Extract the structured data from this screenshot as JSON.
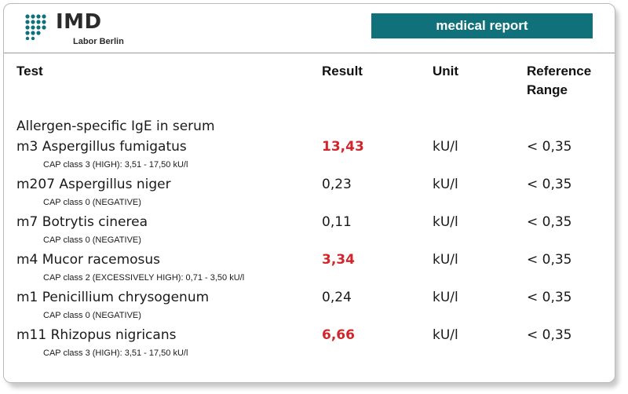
{
  "header": {
    "logo_name": "IMD",
    "logo_subtitle": "Labor Berlin",
    "banner_title": "medical report",
    "banner_color": "#10717a"
  },
  "columns": {
    "test": "Test",
    "result": "Result",
    "unit": "Unit",
    "reference": "Reference Range"
  },
  "section": {
    "title": "Allergen-specific IgE in serum"
  },
  "rows": [
    {
      "name": "m3 Aspergillus fumigatus",
      "result": "13,43",
      "high": true,
      "unit": "kU/l",
      "reference": "< 0,35",
      "cap": "CAP class 3 (HIGH): 3,51 - 17,50 kU/l"
    },
    {
      "name": "m207 Aspergillus niger",
      "result": "0,23",
      "high": false,
      "unit": "kU/l",
      "reference": "< 0,35",
      "cap": "CAP class 0 (NEGATIVE)"
    },
    {
      "name": "m7 Botrytis cinerea",
      "result": "0,11",
      "high": false,
      "unit": "kU/l",
      "reference": "< 0,35",
      "cap": "CAP class 0 (NEGATIVE)"
    },
    {
      "name": "m4 Mucor racemosus",
      "result": "3,34",
      "high": true,
      "unit": "kU/l",
      "reference": "< 0,35",
      "cap": "CAP class 2  (EXCESSIVELY HIGH): 0,71 - 3,50 kU/l"
    },
    {
      "name": "m1 Penicillium chrysogenum",
      "result": "0,24",
      "high": false,
      "unit": "kU/l",
      "reference": "< 0,35",
      "cap": "CAP class 0 (NEGATIVE)"
    },
    {
      "name": "m11 Rhizopus nigricans",
      "result": "6,66",
      "high": true,
      "unit": "kU/l",
      "reference": "< 0,35",
      "cap": "CAP class 3 (HIGH): 3,51 - 17,50 kU/l"
    }
  ],
  "colors": {
    "high_value": "#d0262c",
    "text": "#1a1a1a"
  }
}
